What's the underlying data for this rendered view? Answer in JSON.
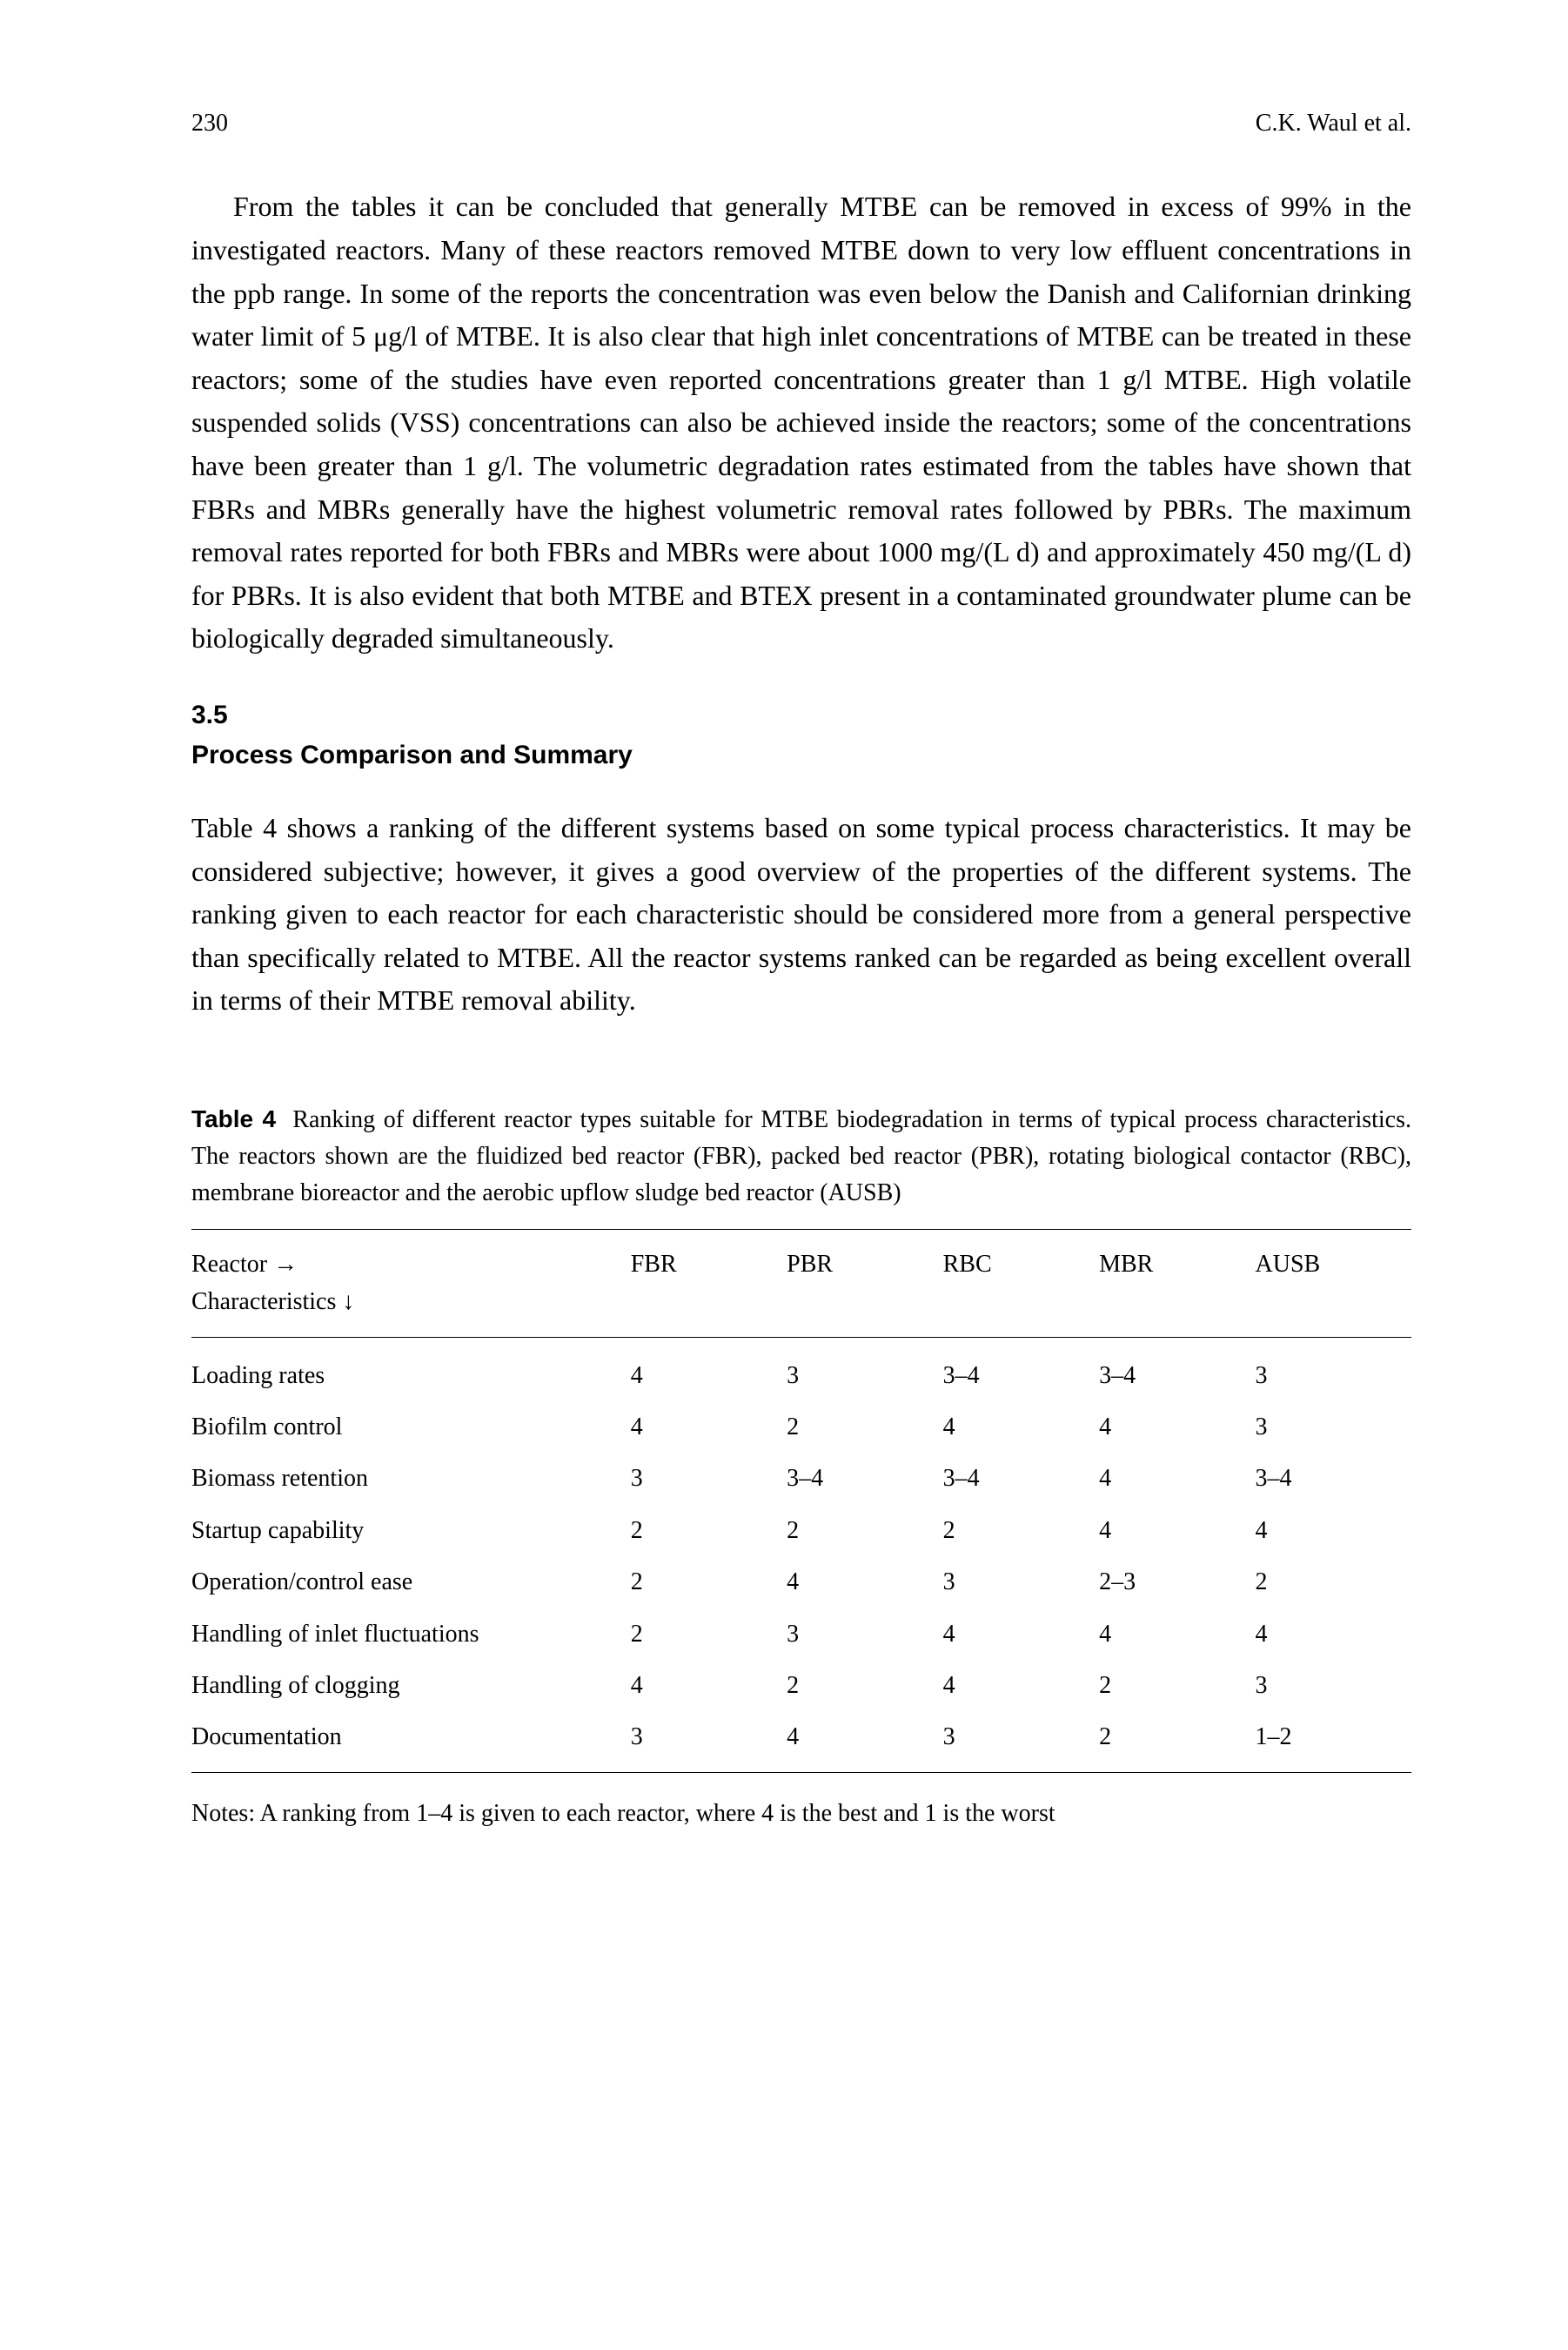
{
  "header": {
    "page_number": "230",
    "author": "C.K. Waul et al."
  },
  "paragraphs": {
    "p1": "From the tables it can be concluded that generally MTBE can be removed in excess of 99% in the investigated reactors. Many of these reactors removed MTBE down to very low effluent concentrations in the ppb range. In some of the reports the concentration was even below the Danish and Californian drinking water limit of 5 μg/l of MTBE. It is also clear that high inlet concentrations of MTBE can be treated in these reactors; some of the studies have even reported concentrations greater than 1 g/l MTBE. High volatile suspended solids (VSS) concentrations can also be achieved inside the reactors; some of the concentrations have been greater than 1 g/l. The volumetric degradation rates estimated from the tables have shown that FBRs and MBRs generally have the highest volumetric removal rates followed by PBRs. The maximum removal rates reported for both FBRs and MBRs were about 1000 mg/(L d) and approximately 450 mg/(L d) for PBRs. It is also evident that both MTBE and BTEX present in a contaminated groundwater plume can be biologically degraded simultaneously.",
    "p2": "Table 4 shows a ranking of the different systems based on some typical process characteristics. It may be considered subjective; however, it gives a good overview of the properties of the different systems. The ranking given to each reactor for each characteristic should be considered more from a general perspective than specifically related to MTBE. All the reactor systems ranked can be regarded as being excellent overall in terms of their MTBE removal ability."
  },
  "section": {
    "number": "3.5",
    "title": "Process Comparison and Summary"
  },
  "table": {
    "caption_label": "Table 4",
    "caption_text": "Ranking of different reactor types suitable for MTBE biodegradation in terms of typical process characteristics. The reactors shown are the fluidized bed reactor (FBR), packed bed reactor (PBR), rotating biological contactor (RBC), membrane bioreactor and the aerobic upflow sludge bed reactor (AUSB)",
    "header": {
      "col0_line1": "Reactor →",
      "col0_line2": "Characteristics ↓",
      "col1": "FBR",
      "col2": "PBR",
      "col3": "RBC",
      "col4": "MBR",
      "col5": "AUSB"
    },
    "rows": [
      {
        "label": "Loading rates",
        "c1": "4",
        "c2": "3",
        "c3": "3–4",
        "c4": "3–4",
        "c5": "3"
      },
      {
        "label": "Biofilm control",
        "c1": "4",
        "c2": "2",
        "c3": "4",
        "c4": "4",
        "c5": "3"
      },
      {
        "label": "Biomass retention",
        "c1": "3",
        "c2": "3–4",
        "c3": "3–4",
        "c4": "4",
        "c5": "3–4"
      },
      {
        "label": "Startup capability",
        "c1": "2",
        "c2": "2",
        "c3": "2",
        "c4": "4",
        "c5": "4"
      },
      {
        "label": "Operation/control ease",
        "c1": "2",
        "c2": "4",
        "c3": "3",
        "c4": "2–3",
        "c5": "2"
      },
      {
        "label": "Handling of inlet fluctuations",
        "c1": "2",
        "c2": "3",
        "c3": "4",
        "c4": "4",
        "c5": "4"
      },
      {
        "label": "Handling of clogging",
        "c1": "4",
        "c2": "2",
        "c3": "4",
        "c4": "2",
        "c5": "3"
      },
      {
        "label": "Documentation",
        "c1": "3",
        "c2": "4",
        "c3": "3",
        "c4": "2",
        "c5": "1–2"
      }
    ],
    "notes": "Notes: A ranking from 1–4 is given to each reactor, where 4 is the best and 1 is the worst"
  }
}
